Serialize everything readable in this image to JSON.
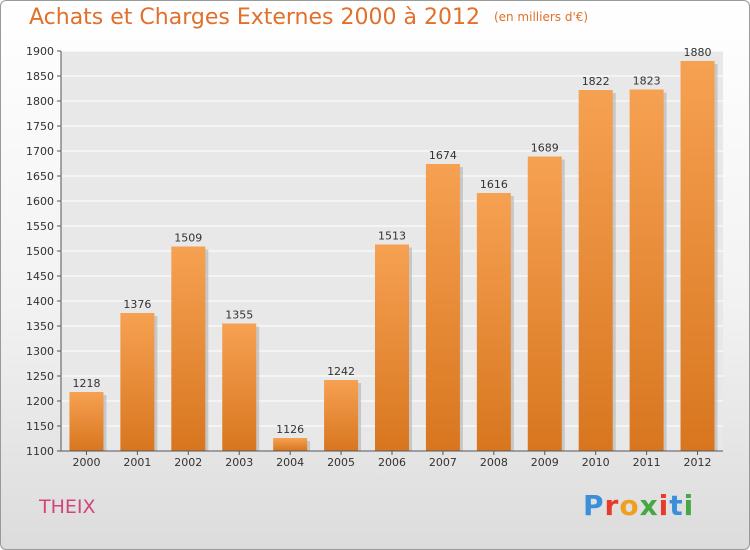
{
  "header": {
    "title": "Achats et Charges Externes 2000 à 2012",
    "subtitle": "(en milliers d'€)"
  },
  "footer": {
    "commune": "THEIX",
    "logo_text": "Proxiti"
  },
  "colors": {
    "bar": "#f08a2e",
    "title": "#e0702a",
    "commune": "#d2457a",
    "logo": [
      "#3a8fd8",
      "#e8392b",
      "#f0a020",
      "#45a845",
      "#e8392b",
      "#3a8fd8",
      "#45a845"
    ]
  },
  "chart_data": {
    "type": "bar",
    "title": "Achats et Charges Externes 2000 à 2012",
    "subtitle": "(en milliers d'€)",
    "categories": [
      "2000",
      "2001",
      "2002",
      "2003",
      "2004",
      "2005",
      "2006",
      "2007",
      "2008",
      "2009",
      "2010",
      "2011",
      "2012"
    ],
    "values": [
      1218,
      1376,
      1509,
      1355,
      1126,
      1242,
      1513,
      1674,
      1616,
      1689,
      1822,
      1823,
      1880
    ],
    "ylim": [
      1100,
      1900
    ],
    "yticks": [
      1100,
      1150,
      1200,
      1250,
      1300,
      1350,
      1400,
      1450,
      1500,
      1550,
      1600,
      1650,
      1700,
      1750,
      1800,
      1850,
      1900
    ],
    "grid": true,
    "data_labels": true
  }
}
